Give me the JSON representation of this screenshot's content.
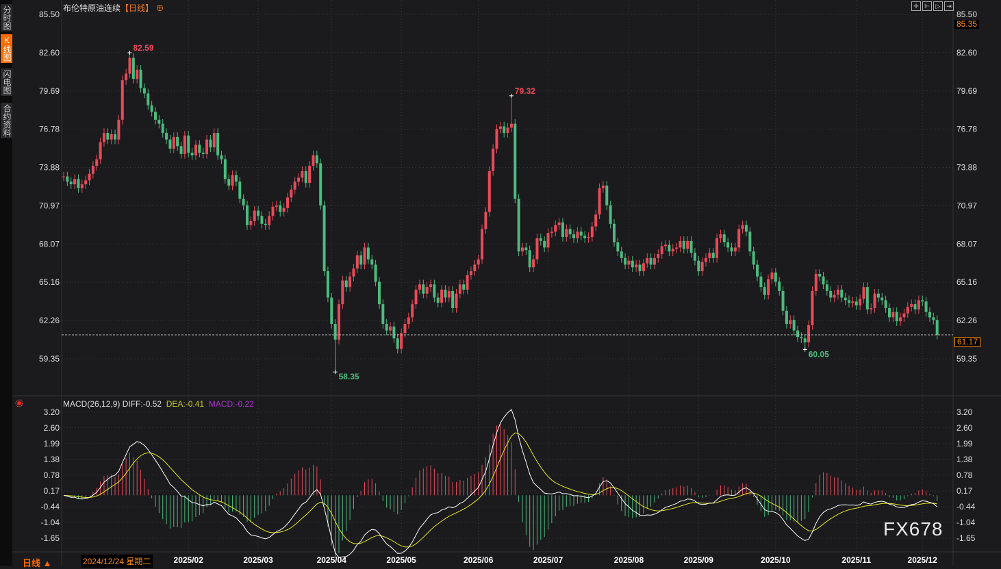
{
  "sidebar": {
    "tabs": [
      {
        "label": "分时图",
        "active": false
      },
      {
        "label": "K线图",
        "active": true
      },
      {
        "label": "闪电图",
        "active": false
      },
      {
        "label": "合约资料",
        "active": false
      }
    ]
  },
  "header": {
    "title": "布伦特原油连续",
    "period": "【日线】",
    "add_icon": "circle-plus-icon"
  },
  "toolbar": {
    "icons": [
      "crosshair-icon",
      "zoom-start-icon",
      "play-icon",
      "exit-icon"
    ]
  },
  "colors": {
    "up": "#e84a5a",
    "down": "#4cbb7f",
    "diff": "#ffffff",
    "dea": "#e6e620",
    "macd": "#cc33cc",
    "accent": "#ff7a1a",
    "background": "#1b1b1d",
    "grid": "#3a3a3a"
  },
  "chart_data": [
    {
      "type": "candlestick",
      "title": "布伦特原油连续",
      "price_axis": {
        "range": [
          59.35,
          85.5
        ],
        "ticks": [
          "85.50",
          "82.60",
          "79.69",
          "76.78",
          "73.88",
          "70.97",
          "68.07",
          "65.16",
          "62.26",
          "59.35"
        ]
      },
      "x_labels": [
        {
          "label": "2025/02",
          "index": 34
        },
        {
          "label": "2025/03",
          "index": 53
        },
        {
          "label": "2025/04",
          "index": 73
        },
        {
          "label": "2025/05",
          "index": 92
        },
        {
          "label": "2025/06",
          "index": 113
        },
        {
          "label": "2025/07",
          "index": 132
        },
        {
          "label": "2025/08",
          "index": 154
        },
        {
          "label": "2025/09",
          "index": 173
        },
        {
          "label": "2025/10",
          "index": 194
        },
        {
          "label": "2025/11",
          "index": 216
        },
        {
          "label": "2025/12",
          "index": 234
        }
      ],
      "close": [
        73.2,
        72.8,
        72.6,
        73.0,
        72.3,
        72.6,
        72.9,
        73.4,
        74.0,
        74.5,
        75.8,
        76.5,
        76.0,
        76.4,
        76.0,
        77.5,
        80.5,
        81.0,
        82.2,
        80.6,
        81.3,
        79.9,
        79.5,
        78.6,
        78.1,
        77.5,
        77.2,
        76.5,
        76.0,
        75.3,
        76.2,
        75.5,
        74.9,
        76.3,
        75.0,
        74.8,
        75.6,
        75.0,
        74.9,
        76.0,
        75.4,
        76.5,
        74.8,
        74.5,
        73.0,
        72.5,
        73.3,
        72.8,
        71.5,
        71.0,
        69.5,
        69.8,
        70.6,
        70.2,
        69.6,
        69.5,
        70.2,
        70.9,
        71.0,
        70.5,
        70.8,
        71.6,
        72.2,
        72.8,
        73.1,
        73.6,
        72.7,
        74.0,
        74.8,
        74.2,
        71.0,
        66.0,
        64.0,
        62.0,
        60.8,
        63.5,
        65.3,
        64.8,
        65.6,
        66.2,
        67.2,
        66.5,
        67.8,
        66.9,
        66.5,
        65.2,
        63.5,
        62.0,
        61.5,
        61.8,
        60.9,
        60.1,
        61.3,
        62.0,
        62.5,
        63.5,
        64.6,
        65.0,
        64.3,
        64.8,
        65.0,
        64.0,
        63.6,
        64.6,
        64.0,
        64.5,
        63.2,
        64.3,
        65.0,
        64.6,
        65.7,
        66.0,
        66.5,
        66.9,
        69.2,
        70.5,
        73.6,
        75.3,
        76.8,
        77.0,
        76.5,
        76.9,
        77.2,
        71.5,
        67.5,
        67.8,
        67.6,
        66.3,
        66.9,
        68.5,
        68.3,
        67.8,
        68.9,
        69.0,
        69.5,
        69.7,
        68.6,
        69.2,
        68.8,
        68.5,
        69.0,
        68.7,
        68.5,
        68.6,
        69.4,
        70.3,
        72.3,
        72.5,
        71.0,
        69.6,
        68.2,
        67.5,
        67.0,
        66.5,
        66.8,
        66.3,
        66.5,
        66.0,
        66.6,
        67.0,
        66.5,
        67.0,
        67.3,
        67.9,
        68.0,
        67.5,
        67.7,
        67.8,
        68.3,
        67.7,
        68.3,
        67.4,
        66.8,
        66.0,
        66.7,
        67.0,
        67.4,
        67.0,
        68.5,
        68.8,
        68.2,
        67.8,
        67.5,
        67.8,
        69.2,
        69.5,
        69.0,
        67.5,
        66.5,
        65.6,
        64.8,
        64.2,
        65.4,
        65.9,
        65.2,
        64.5,
        63.0,
        62.0,
        62.3,
        61.5,
        61.0,
        60.9,
        60.6,
        61.9,
        64.5,
        65.8,
        65.6,
        65.0,
        64.5,
        64.0,
        64.2,
        64.6,
        64.0,
        63.8,
        63.6,
        63.7,
        63.4,
        63.9,
        64.8,
        63.1,
        63.2,
        64.3,
        64.0,
        63.8,
        63.2,
        62.5,
        62.9,
        62.2,
        62.5,
        62.8,
        63.3,
        63.5,
        63.1,
        63.8,
        63.7,
        62.9,
        62.5,
        62.3,
        61.17
      ],
      "extremes": [
        {
          "label": "82.59",
          "index": 18,
          "kind": "high",
          "value": 82.59
        },
        {
          "label": "79.32",
          "index": 122,
          "kind": "high",
          "value": 79.32
        },
        {
          "label": "58.35",
          "index": 74,
          "kind": "low",
          "value": 58.35
        },
        {
          "label": "60.05",
          "index": 202,
          "kind": "low",
          "value": 60.05
        }
      ],
      "last_price": "61.17",
      "top_price": "85.35"
    },
    {
      "type": "bar+line",
      "title": "MACD(26,12,9)",
      "diff_label": "DIFF:-0.52",
      "dea_label": "DEA:-0.41",
      "macd_label": "MACD:-0.22",
      "axis": {
        "range": [
          -1.65,
          3.2
        ],
        "ticks": [
          "3.20",
          "2.60",
          "1.99",
          "1.38",
          "0.78",
          "0.17",
          "-0.44",
          "-1.04",
          "-1.65"
        ]
      }
    }
  ],
  "footer": {
    "period_button": "日线 ▲",
    "cursor_date": "2024/12/24 星期二"
  },
  "watermark": "FX678"
}
